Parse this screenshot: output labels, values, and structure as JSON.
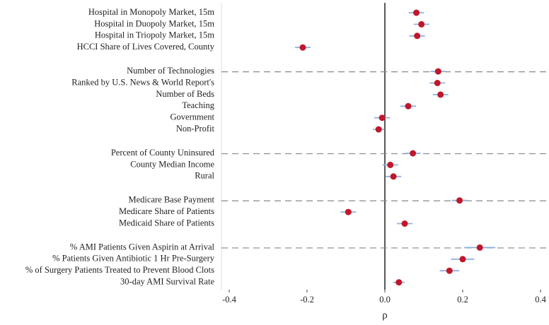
{
  "chart_data": {
    "type": "dot-errorbar",
    "x_label": "ρ",
    "xlim": [
      -0.42,
      0.42
    ],
    "xticks": [
      -0.4,
      -0.2,
      {
        "value": 0,
        "label": "0.0"
      },
      0.2,
      0.4
    ],
    "reference_line": 0,
    "point_color": "#c0172b",
    "error_color": "#8fb0dc",
    "groups": [
      {
        "categories": [
          "Hospital in Monopoly Market, 15m",
          "Hospital in Duopoly Market, 15m",
          "Hospital in Triopoly Market, 15m",
          "HCCI Share of Lives Covered, County"
        ],
        "values": [
          0.081,
          0.094,
          0.083,
          -0.211
        ],
        "errors": [
          0.02,
          0.02,
          0.02,
          0.02
        ]
      },
      {
        "categories": [
          "Number of Technologies",
          "Ranked by U.S. News & World Report's",
          "Number of Beds",
          "Teaching",
          "Government",
          "Non-Profit"
        ],
        "values": [
          0.137,
          0.135,
          0.143,
          0.06,
          -0.007,
          -0.016
        ],
        "errors": [
          0.02,
          0.02,
          0.02,
          0.02,
          0.02,
          0.015
        ]
      },
      {
        "categories": [
          "Percent of County Uninsured",
          "County Median Income",
          "Rural"
        ],
        "values": [
          0.072,
          0.014,
          0.022
        ],
        "errors": [
          0.02,
          0.02,
          0.02
        ]
      },
      {
        "categories": [
          "Medicare Base Payment",
          "Medicare Share of Patients",
          "Medicaid Share of Patients"
        ],
        "values": [
          0.192,
          -0.094,
          0.051
        ],
        "errors": [
          0.02,
          0.02,
          0.02
        ]
      },
      {
        "categories": [
          "% AMI Patients Given Aspirin at Arrival",
          "% Patients Given Antibiotic 1 Hr Pre-Surgery",
          "% of Surgery Patients Treated to Prevent Blood Clots",
          "30-day AMI Survival Rate"
        ],
        "values": [
          0.244,
          0.2,
          0.166,
          0.036
        ],
        "errors": [
          0.04,
          0.03,
          0.025,
          0.015
        ]
      }
    ]
  }
}
